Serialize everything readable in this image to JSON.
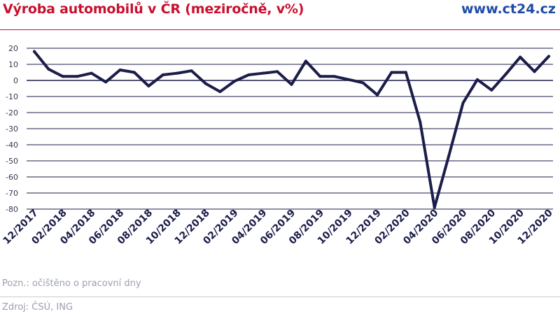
{
  "header": {
    "title": "Výroba automobilů v ČR (meziročně, v%)",
    "site": "www.ct24.cz"
  },
  "footer": {
    "note": "Pozn.: očištěno o pracovní dny",
    "source": "Zdroj: ČSÚ, ING"
  },
  "colors": {
    "title": "#c8102e",
    "site": "#1f4ba5",
    "line": "#1b1d4a",
    "grid": "#1b1d4a"
  },
  "chart_data": {
    "type": "line",
    "title": "Výroba automobilů v ČR (meziročně, v%)",
    "xlabel": "",
    "ylabel": "",
    "ylim": [
      -80,
      20
    ],
    "yticks": [
      20,
      10,
      0,
      -10,
      -20,
      -30,
      -40,
      -50,
      -60,
      -70,
      -80
    ],
    "grid": true,
    "legend": "none",
    "x": [
      "12/2017",
      "01/2018",
      "02/2018",
      "03/2018",
      "04/2018",
      "05/2018",
      "06/2018",
      "07/2018",
      "08/2018",
      "09/2018",
      "10/2018",
      "11/2018",
      "12/2018",
      "01/2019",
      "02/2019",
      "03/2019",
      "04/2019",
      "05/2019",
      "06/2019",
      "07/2019",
      "08/2019",
      "09/2019",
      "10/2019",
      "11/2019",
      "12/2019",
      "01/2020",
      "02/2020",
      "03/2020",
      "04/2020",
      "05/2020",
      "06/2020",
      "07/2020",
      "08/2020",
      "09/2020",
      "10/2020",
      "11/2020",
      "12/2020"
    ],
    "xticklabels": [
      "12/2017",
      "02/2018",
      "04/2018",
      "06/2018",
      "08/2018",
      "10/2018",
      "12/2018",
      "02/2019",
      "04/2019",
      "06/2019",
      "08/2019",
      "10/2019",
      "12/2019",
      "02/2020",
      "04/2020",
      "06/2020",
      "08/2020",
      "10/2020",
      "12/2020"
    ],
    "series": [
      {
        "values": [
          18,
          7,
          2.5,
          2.5,
          4.5,
          -1,
          6.5,
          5,
          -3.5,
          3.5,
          4.5,
          6,
          -2,
          -7,
          -0.5,
          3.5,
          4.5,
          5.5,
          -2.5,
          12,
          2.5,
          2.5,
          0.5,
          -1.5,
          -9,
          5,
          5,
          -26,
          -79,
          -47,
          -14,
          0.5,
          -6,
          4,
          14.5,
          5.5,
          15
        ]
      }
    ]
  }
}
